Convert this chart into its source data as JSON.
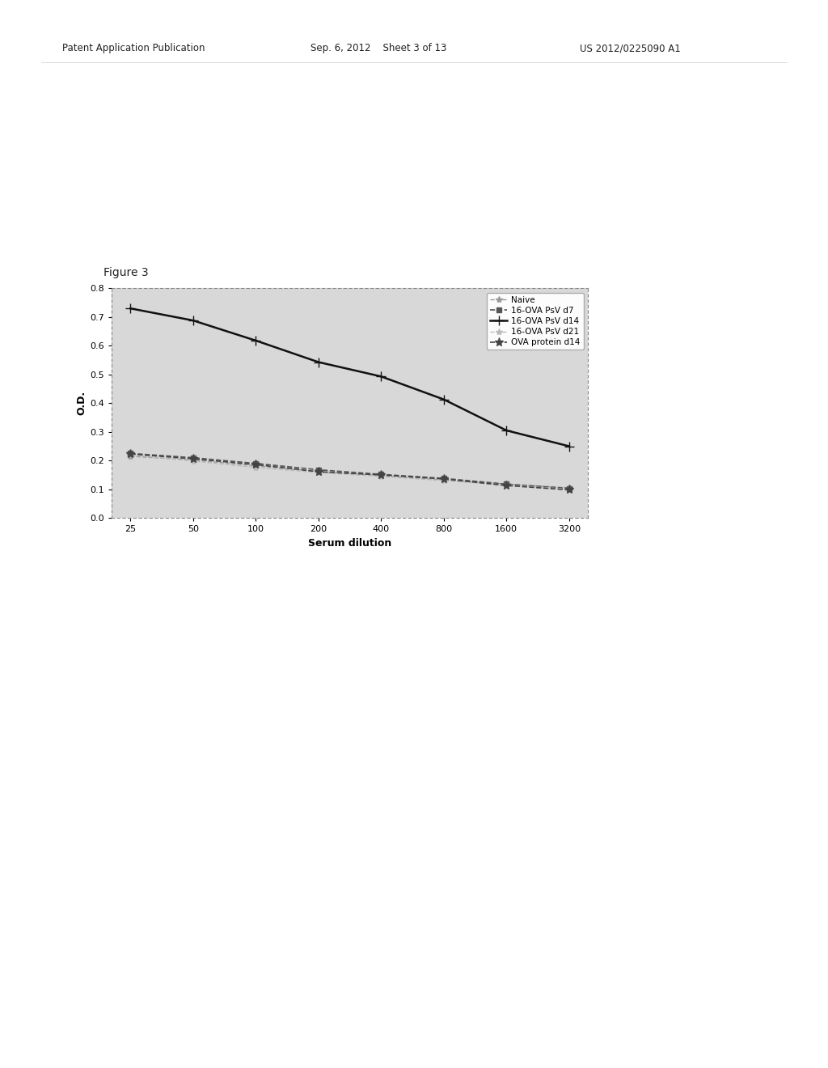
{
  "figure_label": "Figure 3",
  "xlabel": "Serum dilution",
  "ylabel": "O.D.",
  "ylim": [
    0,
    0.8
  ],
  "yticks": [
    0,
    0.1,
    0.2,
    0.3,
    0.4,
    0.5,
    0.6,
    0.7,
    0.8
  ],
  "xtick_labels": [
    "25",
    "50",
    "100",
    "200",
    "400",
    "800",
    "1600",
    "3200"
  ],
  "xtick_values": [
    25,
    50,
    100,
    200,
    400,
    800,
    1600,
    3200
  ],
  "series": [
    {
      "label": "Naive",
      "color": "#999999",
      "marker": "*",
      "markersize": 6,
      "linewidth": 1.0,
      "linestyle": "--",
      "values": [
        0.215,
        0.202,
        0.182,
        0.162,
        0.148,
        0.132,
        0.118,
        0.105
      ]
    },
    {
      "label": "16-OVA PsV d7",
      "color": "#555555",
      "marker": "s",
      "markersize": 5,
      "linewidth": 1.2,
      "linestyle": "--",
      "values": [
        0.225,
        0.21,
        0.19,
        0.168,
        0.152,
        0.138,
        0.118,
        0.103
      ]
    },
    {
      "label": "16-OVA PsV d14",
      "color": "#111111",
      "marker": "+",
      "markersize": 8,
      "linewidth": 1.8,
      "linestyle": "-",
      "values": [
        0.73,
        0.688,
        0.618,
        0.543,
        0.493,
        0.413,
        0.305,
        0.25
      ]
    },
    {
      "label": "16-OVA PsV d21",
      "color": "#bbbbbb",
      "marker": "*",
      "markersize": 6,
      "linewidth": 1.0,
      "linestyle": "--",
      "values": [
        0.22,
        0.198,
        0.176,
        0.158,
        0.145,
        0.13,
        0.115,
        0.1
      ]
    },
    {
      "label": "OVA protein d14",
      "color": "#444444",
      "marker": "*",
      "markersize": 8,
      "linewidth": 1.2,
      "linestyle": "--",
      "values": [
        0.223,
        0.206,
        0.186,
        0.161,
        0.15,
        0.136,
        0.113,
        0.098
      ]
    }
  ],
  "plot_bg_color": "#d8d8d8",
  "page_bg_color": "#ffffff",
  "legend_fontsize": 7.5,
  "axis_fontsize": 9,
  "tick_fontsize": 8,
  "figure_label_fontsize": 10,
  "header_left": "Patent Application Publication",
  "header_mid": "Sep. 6, 2012    Sheet 3 of 13",
  "header_right": "US 2012/0225090 A1"
}
